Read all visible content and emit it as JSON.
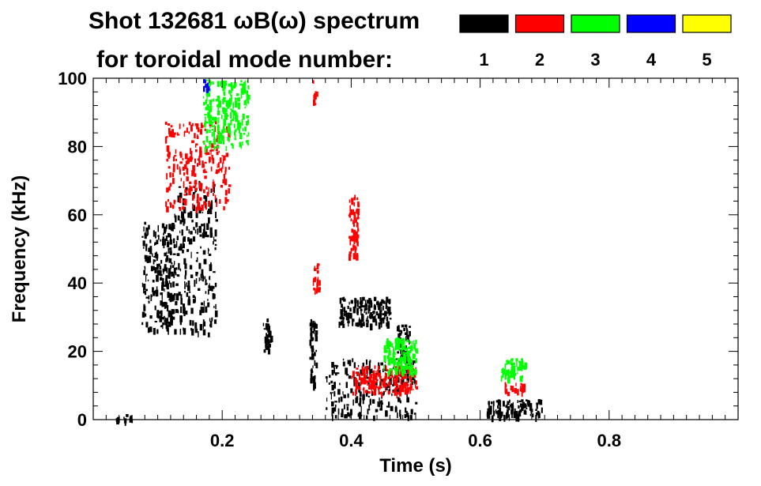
{
  "chart_data": {
    "type": "heatmap",
    "title_line1": "Shot 132681 ωB(ω) spectrum",
    "title_line2": "for toroidal mode number:",
    "xlabel": "Time (s)",
    "ylabel": "Frequency (kHz)",
    "xlim": [
      0.0,
      1.0
    ],
    "ylim": [
      0,
      100
    ],
    "xticks": [
      {
        "value": 0.2,
        "label": "0.2"
      },
      {
        "value": 0.4,
        "label": "0.4"
      },
      {
        "value": 0.6,
        "label": "0.6"
      },
      {
        "value": 0.8,
        "label": "0.8"
      }
    ],
    "yticks": [
      {
        "value": 0,
        "label": "0"
      },
      {
        "value": 20,
        "label": "20"
      },
      {
        "value": 40,
        "label": "40"
      },
      {
        "value": 60,
        "label": "60"
      },
      {
        "value": 80,
        "label": "80"
      },
      {
        "value": 100,
        "label": "100"
      }
    ],
    "legend_placement": "top-right",
    "modes": [
      {
        "label": "1",
        "color": "#000000"
      },
      {
        "label": "2",
        "color": "#ff0000"
      },
      {
        "label": "3",
        "color": "#00ff00"
      },
      {
        "label": "4",
        "color": "#0000ff"
      },
      {
        "label": "5",
        "color": "#ffff00"
      }
    ],
    "regions": [
      {
        "mode": "1",
        "t": [
          0.075,
          0.125
        ],
        "f": [
          26,
          58
        ]
      },
      {
        "mode": "1",
        "t": [
          0.125,
          0.19
        ],
        "f": [
          25,
          70
        ]
      },
      {
        "mode": "1",
        "t": [
          0.263,
          0.275
        ],
        "f": [
          20,
          30
        ]
      },
      {
        "mode": "1",
        "t": [
          0.335,
          0.345
        ],
        "f": [
          10,
          30
        ]
      },
      {
        "mode": "1",
        "t": [
          0.38,
          0.46
        ],
        "f": [
          28,
          36
        ]
      },
      {
        "mode": "1",
        "t": [
          0.47,
          0.49
        ],
        "f": [
          18,
          28
        ]
      },
      {
        "mode": "1",
        "t": [
          0.36,
          0.5
        ],
        "f": [
          1,
          18
        ]
      },
      {
        "mode": "1",
        "t": [
          0.61,
          0.695
        ],
        "f": [
          1,
          6
        ]
      },
      {
        "mode": "1",
        "t": [
          0.035,
          0.06
        ],
        "f": [
          0,
          2
        ]
      },
      {
        "mode": "2",
        "t": [
          0.11,
          0.21
        ],
        "f": [
          62,
          88
        ]
      },
      {
        "mode": "2",
        "t": [
          0.34,
          0.35
        ],
        "f": [
          38,
          46
        ]
      },
      {
        "mode": "2",
        "t": [
          0.395,
          0.41
        ],
        "f": [
          48,
          66
        ]
      },
      {
        "mode": "2",
        "t": [
          0.4,
          0.5
        ],
        "f": [
          8,
          16
        ]
      },
      {
        "mode": "2",
        "t": [
          0.635,
          0.67
        ],
        "f": [
          8,
          11
        ]
      },
      {
        "mode": "2",
        "t": [
          0.34,
          0.345
        ],
        "f": [
          92,
          100
        ]
      },
      {
        "mode": "3",
        "t": [
          0.17,
          0.24
        ],
        "f": [
          80,
          100
        ]
      },
      {
        "mode": "3",
        "t": [
          0.45,
          0.5
        ],
        "f": [
          14,
          24
        ]
      },
      {
        "mode": "3",
        "t": [
          0.63,
          0.67
        ],
        "f": [
          12,
          18
        ]
      },
      {
        "mode": "4",
        "t": [
          0.17,
          0.18
        ],
        "f": [
          97,
          100
        ]
      }
    ]
  }
}
